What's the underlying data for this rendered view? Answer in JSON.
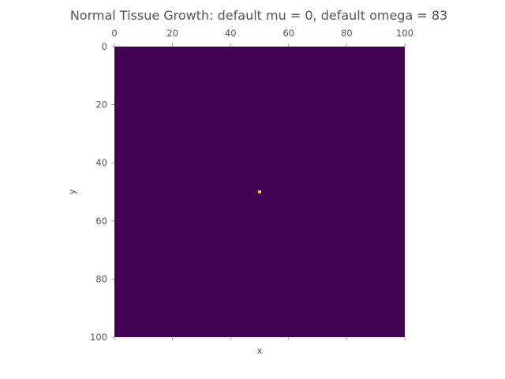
{
  "chart_data": {
    "type": "heatmap",
    "title": "Normal Tissue Growth: default mu = 0, default omega = 83",
    "xlabel": "x",
    "ylabel": "y",
    "xlim": [
      0,
      100
    ],
    "ylim": [
      0,
      100
    ],
    "x_axis_position": "top",
    "y_axis_inverted": true,
    "grid": false,
    "x_ticks": [
      0,
      20,
      40,
      60,
      80,
      100
    ],
    "y_ticks": [
      0,
      20,
      40,
      60,
      80,
      100
    ],
    "grid_size": [
      101,
      101
    ],
    "background_value": 0,
    "background_color": "#440154",
    "cells": [
      {
        "x": 50,
        "y": 50,
        "value": 1,
        "color": "#fde725"
      }
    ],
    "colormap": "viridis"
  }
}
